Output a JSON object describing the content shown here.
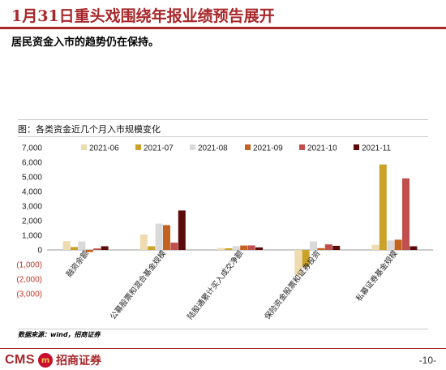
{
  "header": {
    "title": "1月31日重头戏围绕年报业绩预告展开",
    "subtitle": "居民资金入市的趋势仍在保持。"
  },
  "figure": {
    "caption": "图：各类资金近几个月入市规模变化"
  },
  "chart_data": {
    "type": "bar",
    "categories": [
      "融资余额",
      "公募股票和混合基金规模",
      "陆股通累计买入成交净额",
      "保险资金股票和证券投资",
      "私募证券基金规模"
    ],
    "series": [
      {
        "name": "2021-06",
        "color": "#eedbb0",
        "values": [
          600,
          1050,
          130,
          -1750,
          350
        ]
      },
      {
        "name": "2021-07",
        "color": "#c9a227",
        "values": [
          200,
          250,
          110,
          -1150,
          5850
        ]
      },
      {
        "name": "2021-08",
        "color": "#d9d9d9",
        "values": [
          580,
          1800,
          250,
          580,
          650
        ]
      },
      {
        "name": "2021-09",
        "color": "#c4621f",
        "values": [
          -150,
          1700,
          300,
          120,
          700
        ]
      },
      {
        "name": "2021-10",
        "color": "#c0504d",
        "values": [
          100,
          500,
          310,
          380,
          4900
        ]
      },
      {
        "name": "2021-11",
        "color": "#5c0a0a",
        "values": [
          250,
          2700,
          170,
          280,
          250
        ]
      }
    ],
    "ylim": [
      -3000,
      7000
    ],
    "yticks": [
      -3000,
      -2000,
      -1000,
      0,
      1000,
      2000,
      3000,
      4000,
      5000,
      6000,
      7000
    ],
    "ytick_labels": [
      "(3,000)",
      "(2,000)",
      "(1,000)",
      "0",
      "1,000",
      "2,000",
      "3,000",
      "4,000",
      "5,000",
      "6,000",
      "7,000"
    ],
    "negative_label_color": "#c0392b",
    "legend_position": "top",
    "grid": false
  },
  "footer": {
    "source": "数据来源：wind，招商证券",
    "logo_text": "CMS",
    "logo_mark": "m",
    "logo_cn": "招商证券",
    "page": "-10-"
  }
}
